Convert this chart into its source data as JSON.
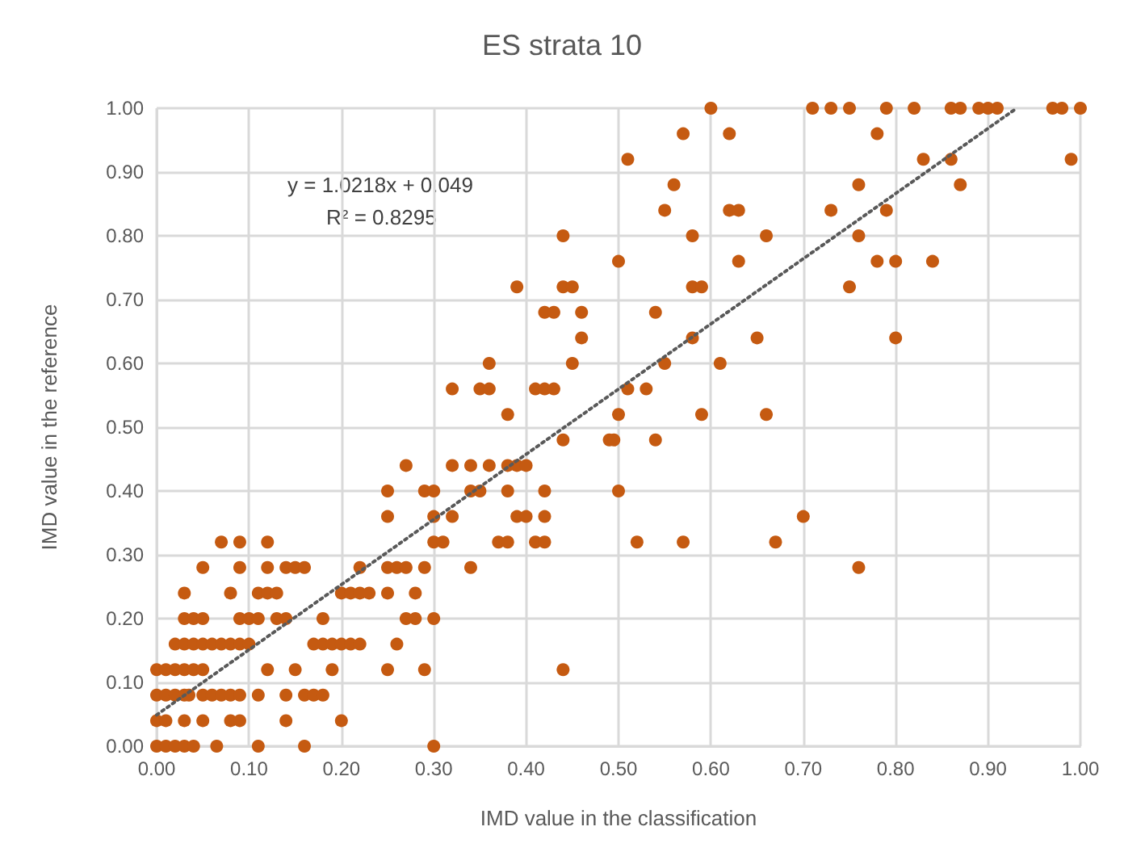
{
  "chart_data": {
    "type": "scatter",
    "title": "ES strata 10",
    "xlabel": "IMD value in the classification",
    "ylabel": "IMD value in the reference",
    "annotations": [
      "y = 1.0218x + 0.049",
      "R² = 0.8295"
    ],
    "xlim": [
      0,
      1
    ],
    "ylim": [
      0,
      1
    ],
    "xticks": [
      {
        "value": 0,
        "label": "0.00"
      },
      {
        "value": 0.1,
        "label": "0.10"
      },
      {
        "value": 0.2,
        "label": "0.20"
      },
      {
        "value": 0.3,
        "label": "0.30"
      },
      {
        "value": 0.4,
        "label": "0.40"
      },
      {
        "value": 0.5,
        "label": "0.50"
      },
      {
        "value": 0.6,
        "label": "0.60"
      },
      {
        "value": 0.7,
        "label": "0.70"
      },
      {
        "value": 0.8,
        "label": "0.80"
      },
      {
        "value": 0.9,
        "label": "0.90"
      },
      {
        "value": 1,
        "label": "1.00"
      }
    ],
    "yticks": [
      {
        "value": 0,
        "label": "0.00"
      },
      {
        "value": 0.1,
        "label": "0.10"
      },
      {
        "value": 0.2,
        "label": "0.20"
      },
      {
        "value": 0.3,
        "label": "0.30"
      },
      {
        "value": 0.4,
        "label": "0.40"
      },
      {
        "value": 0.5,
        "label": "0.50"
      },
      {
        "value": 0.6,
        "label": "0.60"
      },
      {
        "value": 0.7,
        "label": "0.70"
      },
      {
        "value": 0.8,
        "label": "0.80"
      },
      {
        "value": 0.9,
        "label": "0.90"
      },
      {
        "value": 1,
        "label": "1.00"
      }
    ],
    "grid": true,
    "series": [
      {
        "color": "#c55a11",
        "marker": "circle",
        "x": [
          0,
          0.01,
          0.02,
          0.03,
          0.04,
          0.065,
          0.11,
          0.16,
          0.3,
          0,
          0.01,
          0.03,
          0.05,
          0.08,
          0.09,
          0.14,
          0.2,
          0,
          0.01,
          0.02,
          0.03,
          0.035,
          0.05,
          0.06,
          0.07,
          0.08,
          0.09,
          0.11,
          0.14,
          0.16,
          0.17,
          0.18,
          0,
          0.01,
          0.02,
          0.03,
          0.04,
          0.05,
          0.12,
          0.15,
          0.19,
          0.25,
          0.29,
          0.44,
          0.02,
          0.03,
          0.04,
          0.05,
          0.06,
          0.07,
          0.08,
          0.09,
          0.1,
          0.17,
          0.18,
          0.19,
          0.2,
          0.21,
          0.22,
          0.26,
          0.03,
          0.04,
          0.05,
          0.09,
          0.1,
          0.11,
          0.13,
          0.14,
          0.18,
          0.27,
          0.28,
          0.3,
          0.03,
          0.08,
          0.11,
          0.12,
          0.13,
          0.2,
          0.21,
          0.22,
          0.23,
          0.25,
          0.28,
          0.05,
          0.09,
          0.12,
          0.14,
          0.15,
          0.16,
          0.22,
          0.25,
          0.26,
          0.27,
          0.29,
          0.34,
          0.76,
          0.07,
          0.09,
          0.12,
          0.3,
          0.31,
          0.37,
          0.38,
          0.41,
          0.42,
          0.52,
          0.57,
          0.67,
          0.25,
          0.3,
          0.32,
          0.39,
          0.4,
          0.42,
          0.7,
          0.25,
          0.29,
          0.3,
          0.34,
          0.35,
          0.38,
          0.42,
          0.5,
          0.27,
          0.32,
          0.34,
          0.36,
          0.38,
          0.39,
          0.4,
          0.44,
          0.49,
          0.495,
          0.54,
          0.38,
          0.5,
          0.59,
          0.66,
          0.32,
          0.35,
          0.36,
          0.41,
          0.42,
          0.43,
          0.51,
          0.53,
          0.36,
          0.45,
          0.55,
          0.61,
          0.46,
          0.58,
          0.65,
          0.8,
          0.42,
          0.43,
          0.46,
          0.54,
          0.39,
          0.44,
          0.45,
          0.58,
          0.59,
          0.75,
          0.5,
          0.63,
          0.78,
          0.8,
          0.84,
          0.44,
          0.58,
          0.66,
          0.76,
          0.55,
          0.62,
          0.63,
          0.73,
          0.79,
          0.56,
          0.76,
          0.87,
          0.51,
          0.83,
          0.86,
          0.99,
          0.57,
          0.62,
          0.78,
          0.6,
          0.71,
          0.73,
          0.75,
          0.79,
          0.82,
          0.86,
          0.87,
          0.89,
          0.9,
          0.91,
          0.97,
          0.98,
          1
        ],
        "values": [
          0,
          0,
          0,
          0,
          0,
          0,
          0,
          0,
          0,
          0.04,
          0.04,
          0.04,
          0.04,
          0.04,
          0.04,
          0.04,
          0.04,
          0.08,
          0.08,
          0.08,
          0.08,
          0.08,
          0.08,
          0.08,
          0.08,
          0.08,
          0.08,
          0.08,
          0.08,
          0.08,
          0.08,
          0.08,
          0.12,
          0.12,
          0.12,
          0.12,
          0.12,
          0.12,
          0.12,
          0.12,
          0.12,
          0.12,
          0.12,
          0.12,
          0.16,
          0.16,
          0.16,
          0.16,
          0.16,
          0.16,
          0.16,
          0.16,
          0.16,
          0.16,
          0.16,
          0.16,
          0.16,
          0.16,
          0.16,
          0.16,
          0.2,
          0.2,
          0.2,
          0.2,
          0.2,
          0.2,
          0.2,
          0.2,
          0.2,
          0.2,
          0.2,
          0.2,
          0.24,
          0.24,
          0.24,
          0.24,
          0.24,
          0.24,
          0.24,
          0.24,
          0.24,
          0.24,
          0.24,
          0.28,
          0.28,
          0.28,
          0.28,
          0.28,
          0.28,
          0.28,
          0.28,
          0.28,
          0.28,
          0.28,
          0.28,
          0.28,
          0.32,
          0.32,
          0.32,
          0.32,
          0.32,
          0.32,
          0.32,
          0.32,
          0.32,
          0.32,
          0.32,
          0.32,
          0.36,
          0.36,
          0.36,
          0.36,
          0.36,
          0.36,
          0.36,
          0.4,
          0.4,
          0.4,
          0.4,
          0.4,
          0.4,
          0.4,
          0.4,
          0.44,
          0.44,
          0.44,
          0.44,
          0.44,
          0.44,
          0.44,
          0.48,
          0.48,
          0.48,
          0.48,
          0.52,
          0.52,
          0.52,
          0.52,
          0.56,
          0.56,
          0.56,
          0.56,
          0.56,
          0.56,
          0.56,
          0.56,
          0.6,
          0.6,
          0.6,
          0.6,
          0.64,
          0.64,
          0.64,
          0.64,
          0.68,
          0.68,
          0.68,
          0.68,
          0.72,
          0.72,
          0.72,
          0.72,
          0.72,
          0.72,
          0.76,
          0.76,
          0.76,
          0.76,
          0.76,
          0.8,
          0.8,
          0.8,
          0.8,
          0.84,
          0.84,
          0.84,
          0.84,
          0.84,
          0.88,
          0.88,
          0.88,
          0.92,
          0.92,
          0.92,
          0.92,
          0.96,
          0.96,
          0.96,
          1,
          1,
          1,
          1,
          1,
          1,
          1,
          1,
          1,
          1,
          1,
          1,
          1,
          1
        ]
      },
      {
        "type": "line",
        "color": "#595959",
        "marker": "none",
        "line_style": "dotted",
        "x": [
          0,
          0.93
        ],
        "values": [
          0.049,
          0.999
        ]
      }
    ]
  }
}
